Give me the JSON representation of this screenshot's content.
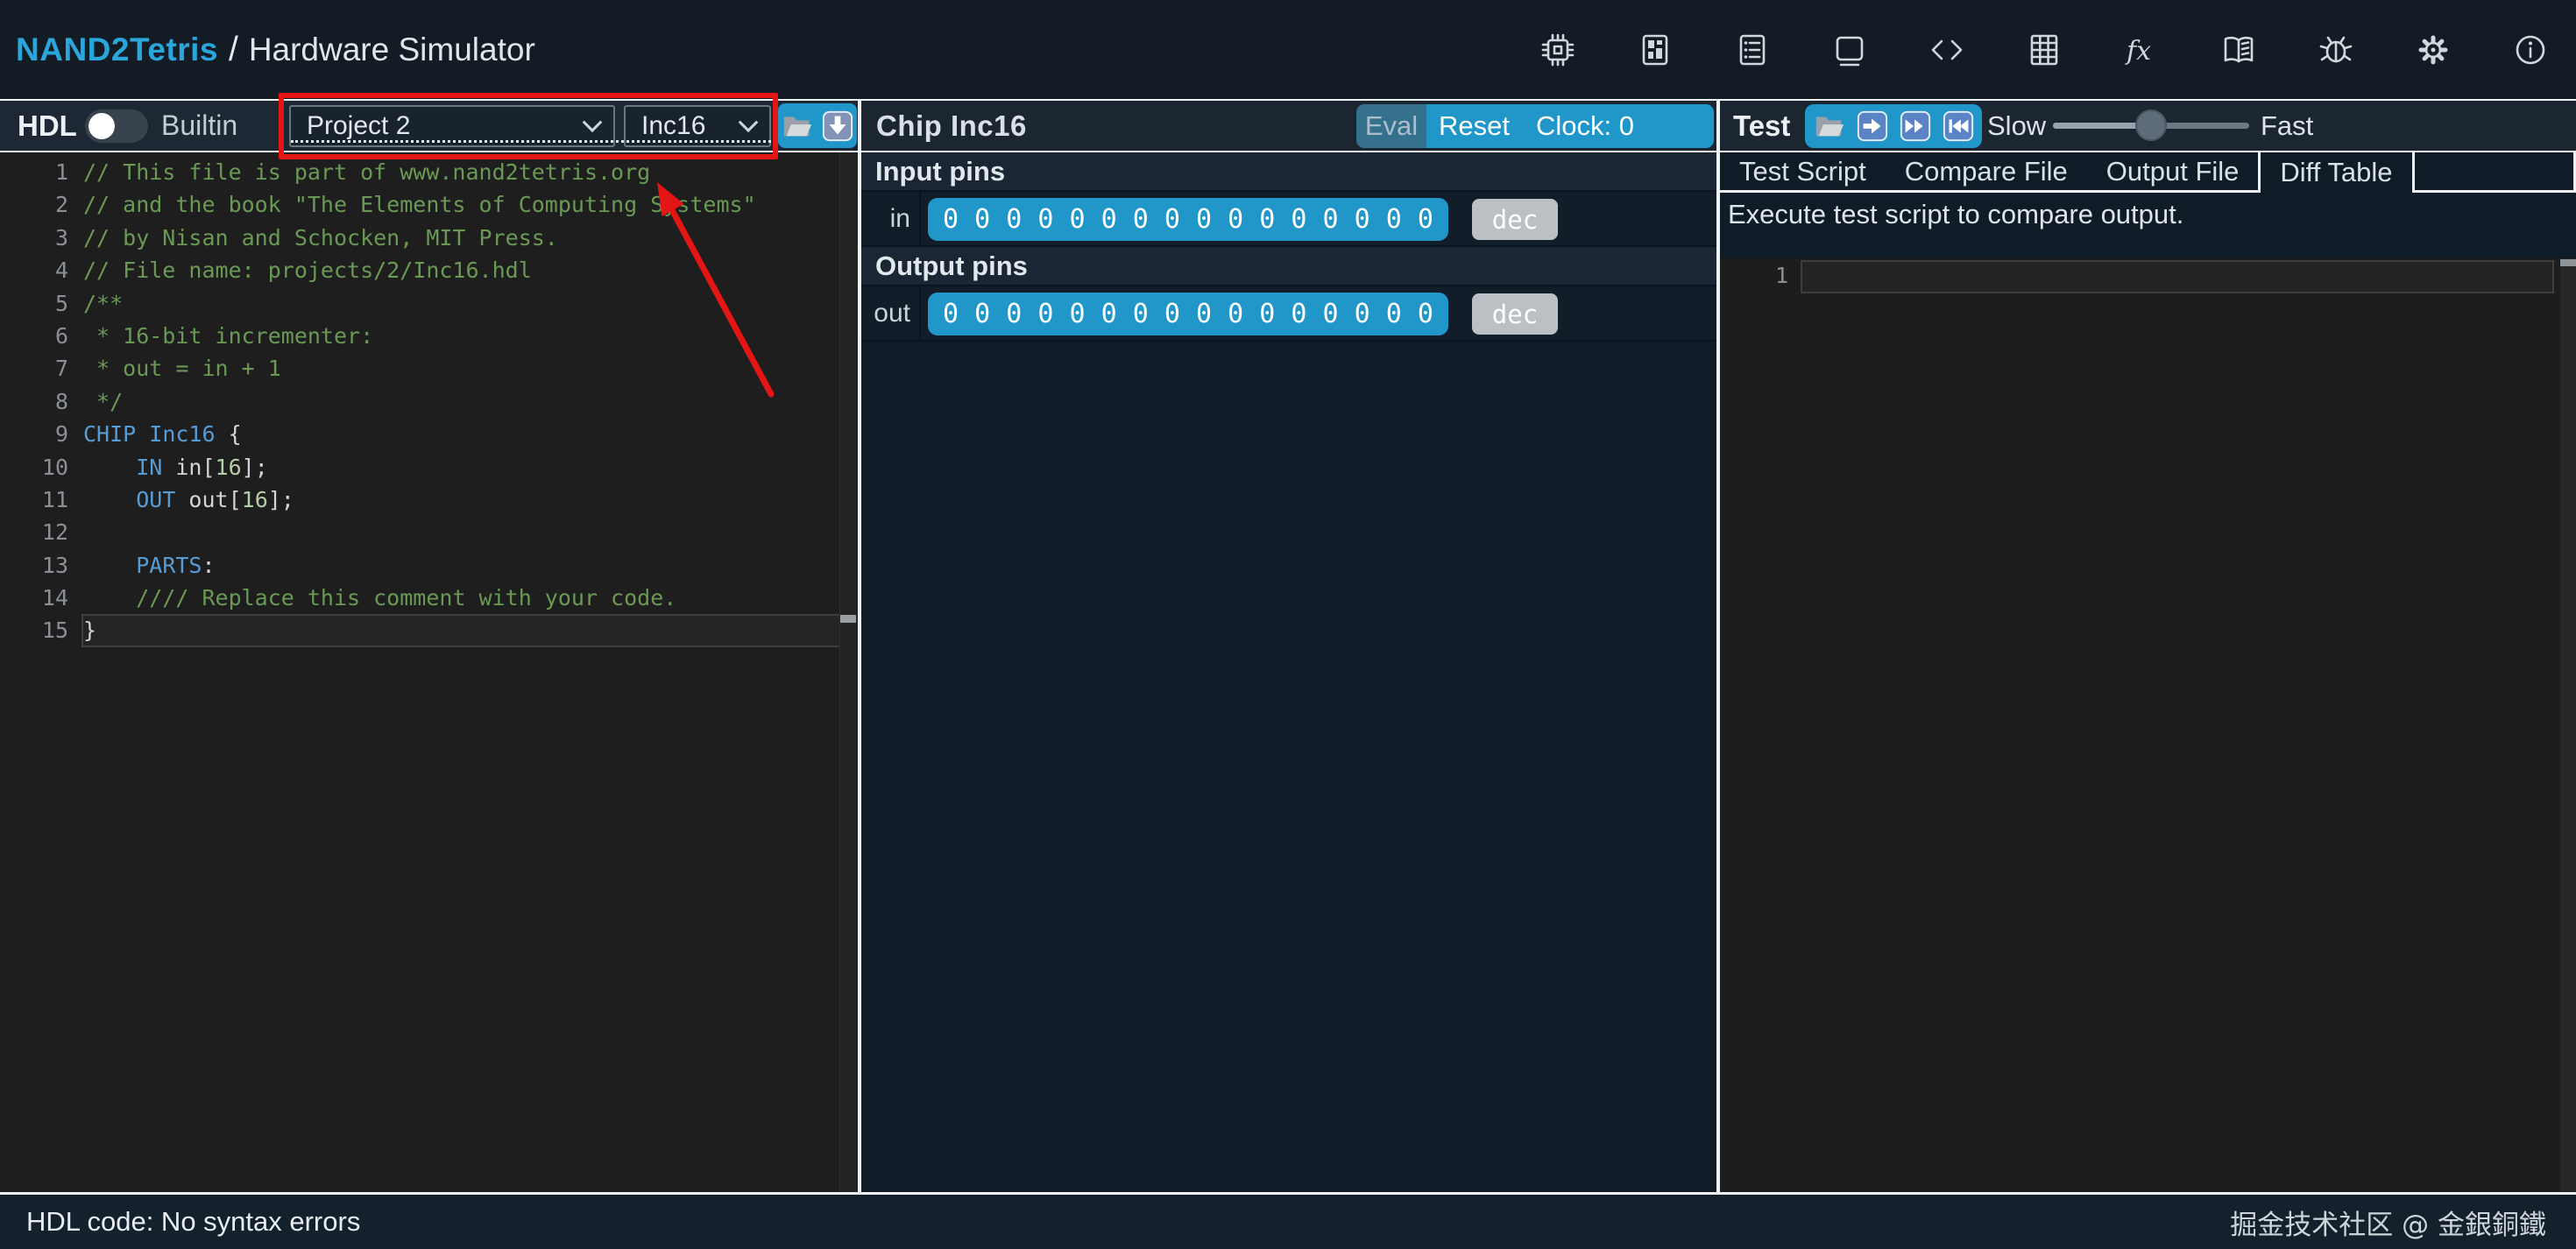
{
  "titlebar": {
    "brand": "NAND2Tetris",
    "separator": "/",
    "app_name": "Hardware Simulator",
    "icons": [
      "chip",
      "cpu-board",
      "assembler",
      "screen",
      "code-brackets",
      "table-grid",
      "function-fx",
      "book",
      "bug",
      "settings",
      "info"
    ]
  },
  "toolbar": {
    "hdl_label": "HDL",
    "builtin_label": "Builtin",
    "toggle_state": "hdl",
    "project_select_value": "Project 2",
    "chip_select_value": "Inc16",
    "file_buttons": [
      "open-folder",
      "download"
    ]
  },
  "chip_panel": {
    "title": "Chip Inc16",
    "eval_label": "Eval",
    "reset_label": "Reset",
    "clock_label": "Clock: 0",
    "input_pins_header": "Input pins",
    "output_pins_header": "Output pins",
    "dec_label": "dec",
    "pins": [
      {
        "name": "in",
        "bits": [
          "0",
          "0",
          "0",
          "0",
          "0",
          "0",
          "0",
          "0",
          "0",
          "0",
          "0",
          "0",
          "0",
          "0",
          "0",
          "0"
        ]
      },
      {
        "name": "out",
        "bits": [
          "0",
          "0",
          "0",
          "0",
          "0",
          "0",
          "0",
          "0",
          "0",
          "0",
          "0",
          "0",
          "0",
          "0",
          "0",
          "0"
        ]
      }
    ]
  },
  "test_panel": {
    "title": "Test",
    "controls": [
      "open-folder",
      "step-forward",
      "fast-forward",
      "rewind"
    ],
    "slow_label": "Slow",
    "fast_label": "Fast",
    "slider_position": 0.5,
    "tabs": [
      "Test Script",
      "Compare File",
      "Output File",
      "Diff Table"
    ],
    "active_tab": "Diff Table",
    "message": "Execute test script to compare output.",
    "editor": {
      "line_number": "1",
      "content": ""
    }
  },
  "hdl_editor": {
    "lines": [
      {
        "seg": [
          {
            "t": "// This file is part of www.nand2tetris.org",
            "c": "comment"
          }
        ]
      },
      {
        "seg": [
          {
            "t": "// and the book \"The Elements of Computing Systems\"",
            "c": "comment"
          }
        ]
      },
      {
        "seg": [
          {
            "t": "// by Nisan and Schocken, MIT Press.",
            "c": "comment"
          }
        ]
      },
      {
        "seg": [
          {
            "t": "// File name: projects/2/Inc16.hdl",
            "c": "comment"
          }
        ]
      },
      {
        "seg": [
          {
            "t": "/**",
            "c": "comment"
          }
        ]
      },
      {
        "seg": [
          {
            "t": " * 16-bit incrementer:",
            "c": "comment"
          }
        ]
      },
      {
        "seg": [
          {
            "t": " * out = in + 1",
            "c": "comment"
          }
        ]
      },
      {
        "seg": [
          {
            "t": " */",
            "c": "comment"
          }
        ]
      },
      {
        "seg": [
          {
            "t": "CHIP",
            "c": "keyword"
          },
          {
            "t": " "
          },
          {
            "t": "Inc16",
            "c": "type"
          },
          {
            "t": " {"
          }
        ]
      },
      {
        "seg": [
          {
            "t": "    "
          },
          {
            "t": "IN",
            "c": "keyword"
          },
          {
            "t": " in["
          },
          {
            "t": "16",
            "c": "number"
          },
          {
            "t": "];"
          }
        ]
      },
      {
        "seg": [
          {
            "t": "    "
          },
          {
            "t": "OUT",
            "c": "keyword"
          },
          {
            "t": " out["
          },
          {
            "t": "16",
            "c": "number"
          },
          {
            "t": "];"
          }
        ]
      },
      {
        "seg": []
      },
      {
        "seg": [
          {
            "t": "    "
          },
          {
            "t": "PARTS",
            "c": "keyword"
          },
          {
            "t": ":"
          }
        ]
      },
      {
        "seg": [
          {
            "t": "    //// Replace this comment with your code.",
            "c": "comment"
          }
        ]
      },
      {
        "seg": [
          {
            "t": "}"
          }
        ]
      }
    ],
    "current_line": 15
  },
  "status_bar": {
    "message": "HDL code: No syntax errors",
    "watermark": "掘金技术社区 @ 金銀銅鐵"
  },
  "colors": {
    "accent_blue": "#2196C9",
    "brand_blue": "#2BA6DB",
    "eval_dim_blue": "#35708D",
    "annotation_red": "#E41515",
    "editor_bg": "#1E1E1E",
    "panel_bg": "#0F1C28"
  }
}
